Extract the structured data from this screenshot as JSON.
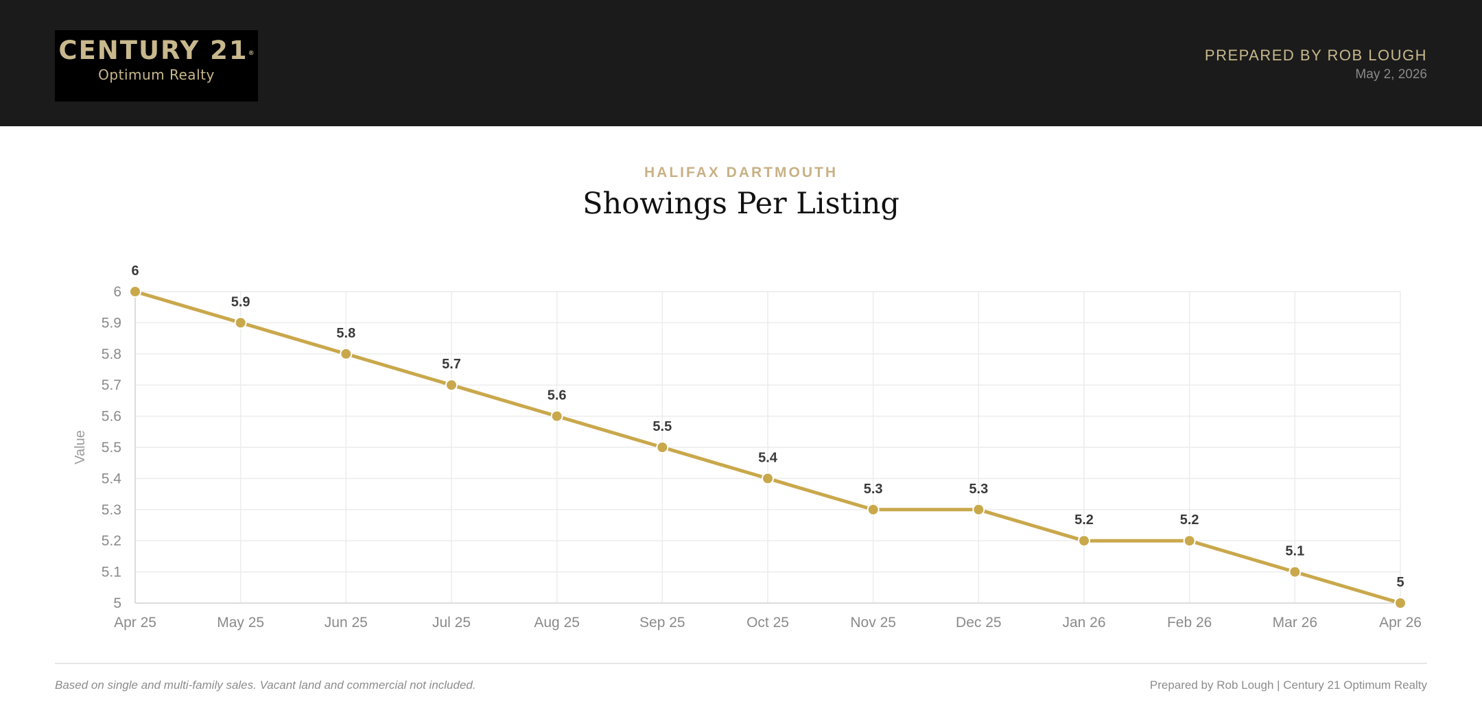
{
  "header": {
    "logo": {
      "brand": "CENTURY 21",
      "registered": "®",
      "sub": "Optimum Realty"
    },
    "prepared_by": "PREPARED BY ROB LOUGH",
    "date": "May 2, 2026"
  },
  "region": "HALIFAX DARTMOUTH",
  "footer": {
    "note": "Based on single and multi-family sales. Vacant land and commercial not included.",
    "credit": "Prepared by Rob Lough | Century 21 Optimum Realty"
  },
  "colors": {
    "header_bg": "#1b1b1b",
    "brand_gold": "#c8b88d",
    "line": "#c9a84c",
    "grid": "#ececec"
  },
  "chart_data": {
    "type": "line",
    "title": "Showings Per Listing",
    "xlabel": "",
    "ylabel": "Value",
    "categories": [
      "Apr 25",
      "May 25",
      "Jun 25",
      "Jul 25",
      "Aug 25",
      "Sep 25",
      "Oct 25",
      "Nov 25",
      "Dec 25",
      "Jan 26",
      "Feb 26",
      "Mar 26",
      "Apr 26"
    ],
    "series": [
      {
        "values": [
          6,
          5.9,
          5.8,
          5.7,
          5.6,
          5.5,
          5.4,
          5.3,
          5.3,
          5.2,
          5.2,
          5.1,
          5
        ]
      }
    ],
    "ylim": [
      5,
      6
    ],
    "yticks": [
      5,
      5.1,
      5.2,
      5.3,
      5.4,
      5.5,
      5.6,
      5.7,
      5.8,
      5.9,
      6
    ],
    "grid": true,
    "data_labels": true,
    "legend": "none"
  }
}
